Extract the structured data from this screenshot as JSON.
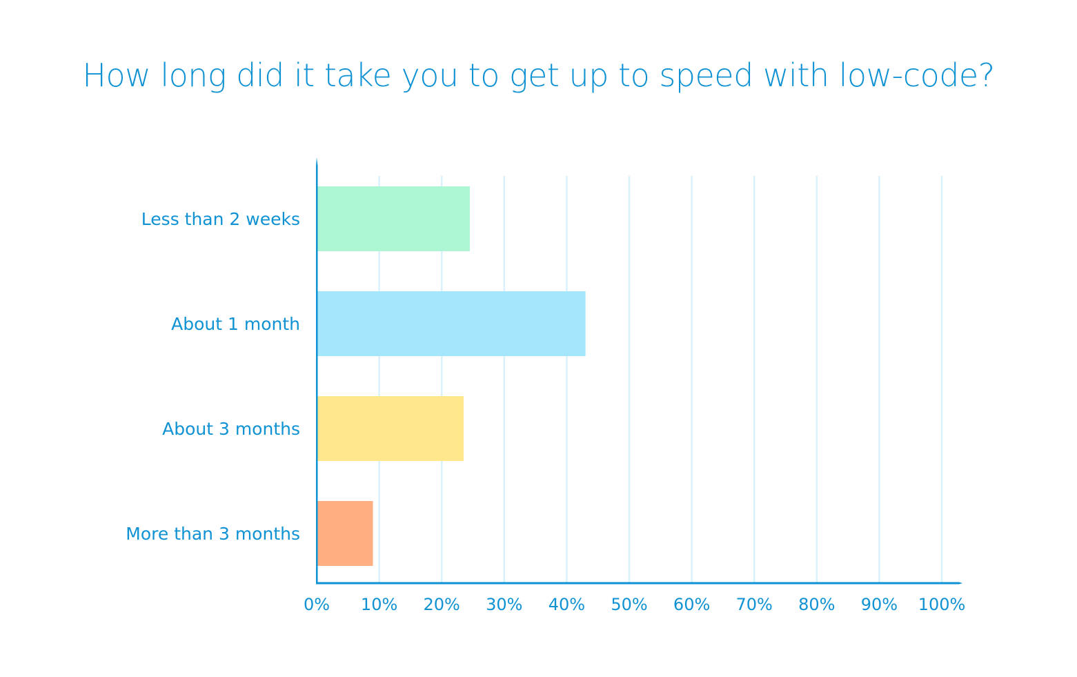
{
  "chart_data": {
    "type": "bar",
    "orientation": "horizontal",
    "title": "How long did it take you to get up to speed with low-code?",
    "categories": [
      "Less than 2 weeks",
      "About 1 month",
      "About 3 months",
      "More than 3 months"
    ],
    "values": [
      24.5,
      43,
      23.5,
      9
    ],
    "colors": [
      "#adf6d4",
      "#a4e6fb",
      "#fee88b",
      "#ffae82"
    ],
    "xlim": [
      0,
      100
    ],
    "xticks": [
      0,
      10,
      20,
      30,
      40,
      50,
      60,
      70,
      80,
      90,
      100
    ],
    "tick_suffix": "%",
    "grid": true,
    "legend": "none",
    "axis_color": "#0f92d4",
    "grid_color": "#d9f1fb"
  }
}
